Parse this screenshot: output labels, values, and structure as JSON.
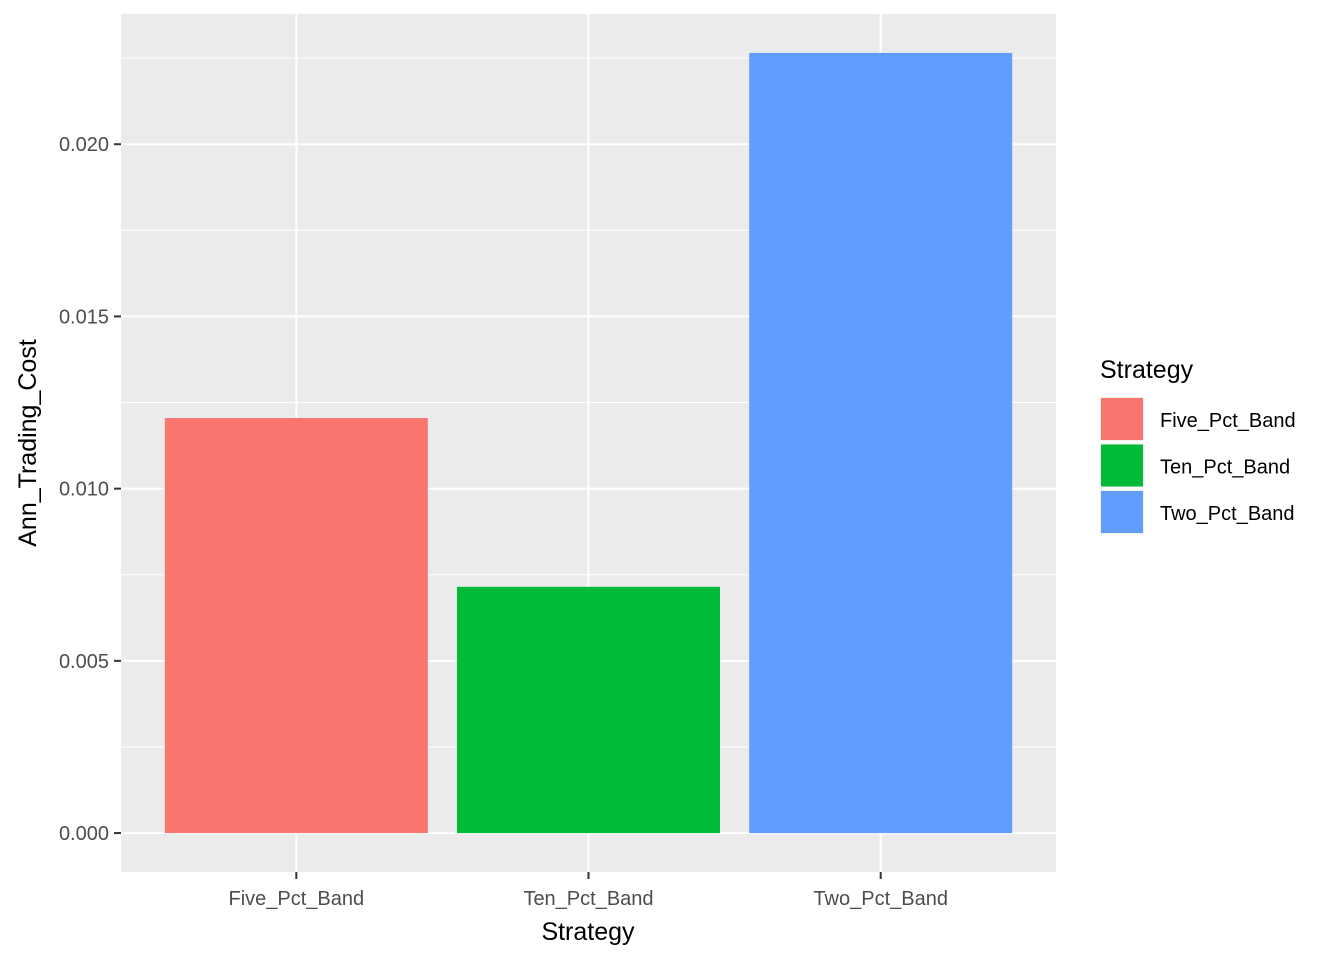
{
  "chart_data": {
    "type": "bar",
    "categories": [
      "Five_Pct_Band",
      "Ten_Pct_Band",
      "Two_Pct_Band"
    ],
    "values": [
      0.01205,
      0.00715,
      0.02265
    ],
    "colors": [
      "#F8766D",
      "#00BA38",
      "#619CFF"
    ],
    "xlabel": "Strategy",
    "ylabel": "Ann_Trading_Cost",
    "ylim": [
      -0.00113,
      0.02378
    ],
    "yticks": [
      0.0,
      0.005,
      0.01,
      0.015,
      0.02
    ],
    "ytick_labels": [
      "0.000",
      "0.005",
      "0.010",
      "0.015",
      "0.020"
    ],
    "grid": true,
    "legend": {
      "title": "Strategy",
      "position": "right",
      "entries": [
        "Five_Pct_Band",
        "Ten_Pct_Band",
        "Two_Pct_Band"
      ]
    }
  }
}
